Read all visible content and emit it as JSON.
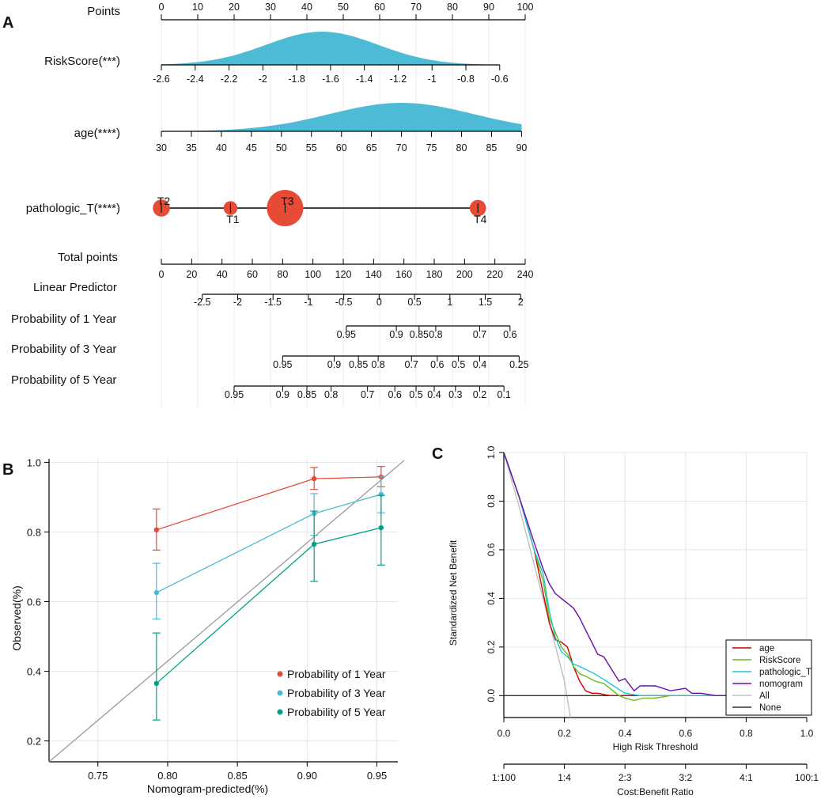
{
  "panels": {
    "a": "A",
    "b": "B",
    "c": "C"
  },
  "colors": {
    "density": "#4dbbd5",
    "bubble": "#e64b35",
    "red": "#e64b35",
    "cyan": "#4dbbd5",
    "teal": "#00a087",
    "diag": "#9a9a9a",
    "grid": "#e5e5e5"
  },
  "chart_data": [
    {
      "type": "nomogram",
      "panel": "A",
      "rows": [
        {
          "label": "Points",
          "scale": [
            0,
            100
          ],
          "ticks": [
            0,
            10,
            20,
            30,
            40,
            50,
            60,
            70,
            80,
            90,
            100
          ]
        },
        {
          "label": "RiskScore(***)",
          "variable_range": [
            -2.6,
            -0.6
          ],
          "points_range": [
            0,
            93
          ],
          "ticks": [
            "-2.6",
            "-2.4",
            "-2.2",
            "-2",
            "-1.8",
            "-1.6",
            "-1.4",
            "-1.2",
            "-1",
            "-0.8",
            "-0.6"
          ],
          "density_peak": -1.65,
          "density_sd": 0.33
        },
        {
          "label": "age(****)",
          "variable_range": [
            30,
            90
          ],
          "points_range": [
            0,
            99
          ],
          "ticks": [
            "30",
            "35",
            "40",
            "45",
            "50",
            "55",
            "60",
            "65",
            "70",
            "75",
            "80",
            "85",
            "90"
          ],
          "density_peak": 70,
          "density_sd": 12
        },
        {
          "label": "pathologic_T(****)",
          "levels": [
            {
              "name": "T2",
              "points": 0,
              "size": 0.47,
              "label_pos": "above"
            },
            {
              "name": "T1",
              "points": 19,
              "size": 0.38,
              "label_pos": "below"
            },
            {
              "name": "T3",
              "points": 34,
              "size": 1.0,
              "label_pos": "above"
            },
            {
              "name": "T4",
              "points": 87,
              "size": 0.45,
              "label_pos": "below"
            }
          ]
        },
        {
          "label": "Total points",
          "scale": [
            0,
            240
          ],
          "ticks": [
            "0",
            "20",
            "40",
            "60",
            "80",
            "100",
            "120",
            "140",
            "160",
            "180",
            "200",
            "220",
            "240"
          ]
        },
        {
          "label": "Linear Predictor",
          "range": [
            -2.5,
            2
          ],
          "ticks": [
            "-2.5",
            "-2",
            "-1.5",
            "-1",
            "-0.5",
            "0",
            "0.5",
            "1",
            "1.5",
            "2"
          ]
        },
        {
          "label": "Probability of 1 Year",
          "tick_values": [
            0.95,
            0.9,
            0.85,
            0.8,
            0.7,
            0.6
          ],
          "total_points_at_ticks": [
            122,
            155,
            170,
            181,
            210,
            230
          ],
          "ticks": [
            "0.95",
            "0.9",
            "0.85",
            "0.8",
            "0.7",
            "0.6"
          ]
        },
        {
          "label": "Probability of 3 Year",
          "tick_values": [
            0.95,
            0.9,
            0.85,
            0.8,
            0.7,
            0.6,
            0.5,
            0.4,
            0.25
          ],
          "total_points_at_ticks": [
            80,
            114,
            130,
            143,
            165,
            182,
            196,
            210,
            236
          ],
          "ticks": [
            "0.95",
            "0.9",
            "0.85",
            "0.8",
            "0.7",
            "0.6",
            "0.5",
            "0.4",
            "0.25"
          ]
        },
        {
          "label": "Probability of 5 Year",
          "tick_values": [
            0.95,
            0.9,
            0.85,
            0.8,
            0.7,
            0.6,
            0.5,
            0.4,
            0.3,
            0.2,
            0.1
          ],
          "total_points_at_ticks": [
            48,
            80,
            96,
            112,
            136,
            154,
            168,
            180,
            194,
            210,
            226
          ],
          "ticks": [
            "0.95",
            "0.9",
            "0.85",
            "0.8",
            "0.7",
            "0.6",
            "0.5",
            "0.4",
            "0.3",
            "0.2",
            "0.1"
          ]
        }
      ]
    },
    {
      "type": "line",
      "panel": "B",
      "xlabel": "Nomogram-predicted(%)",
      "ylabel": "Observed(%)",
      "xlim": [
        0.715,
        0.965
      ],
      "ylim": [
        0.14,
        1.01
      ],
      "xticks": [
        "0.75",
        "0.80",
        "0.85",
        "0.90",
        "0.95"
      ],
      "yticks": [
        "0.2",
        "0.4",
        "0.6",
        "0.8",
        "1.0"
      ],
      "reference_line": "y = x",
      "series": [
        {
          "name": "Probability of 1 Year",
          "color": "#e64b35",
          "x": [
            0.792,
            0.905,
            0.953
          ],
          "y": [
            0.806,
            0.953,
            0.958
          ],
          "err_low": [
            0.748,
            0.922,
            0.93
          ],
          "err_high": [
            0.866,
            0.985,
            0.988
          ]
        },
        {
          "name": "Probability of 3 Year",
          "color": "#4dbbd5",
          "x": [
            0.792,
            0.905,
            0.953
          ],
          "y": [
            0.626,
            0.853,
            0.908
          ],
          "err_low": [
            0.55,
            0.79,
            0.855
          ],
          "err_high": [
            0.71,
            0.91,
            0.96
          ]
        },
        {
          "name": "Probability of 5 Year",
          "color": "#00a087",
          "x": [
            0.792,
            0.905,
            0.953
          ],
          "y": [
            0.365,
            0.765,
            0.812
          ],
          "err_low": [
            0.26,
            0.658,
            0.705
          ],
          "err_high": [
            0.51,
            0.86,
            0.905
          ]
        }
      ],
      "legend": "bottom-right"
    },
    {
      "type": "line",
      "panel": "C",
      "xlabel": "High Risk Threshold",
      "ylabel": "Standardized Net Benefit",
      "x2label": "Cost:Benefit Ratio",
      "xlim": [
        0,
        1
      ],
      "ylim": [
        -0.09,
        1.0
      ],
      "xticks": [
        "0.0",
        "0.2",
        "0.4",
        "0.6",
        "0.8",
        "1.0"
      ],
      "yticks": [
        "0.0",
        "0.2",
        "0.4",
        "0.6",
        "0.8",
        "1.0"
      ],
      "x2ticks": [
        "1:100",
        "1:4",
        "2:3",
        "3:2",
        "4:1",
        "100:1"
      ],
      "legend": "bottom-right",
      "series": [
        {
          "name": "age",
          "color": "#cc0000",
          "x": [
            0,
            0.05,
            0.1,
            0.13,
            0.15,
            0.17,
            0.19,
            0.21,
            0.23,
            0.25,
            0.27,
            0.29,
            0.31,
            0.35,
            0.4,
            0.5,
            0.7,
            0.9
          ],
          "y": [
            1.0,
            0.82,
            0.6,
            0.42,
            0.3,
            0.23,
            0.22,
            0.2,
            0.12,
            0.06,
            0.02,
            0.01,
            0.01,
            0.0,
            0.0,
            0.0,
            0.0,
            0.0
          ]
        },
        {
          "name": "RiskScore",
          "color": "#66bb1f",
          "x": [
            0,
            0.05,
            0.1,
            0.13,
            0.15,
            0.17,
            0.19,
            0.21,
            0.23,
            0.25,
            0.27,
            0.3,
            0.33,
            0.36,
            0.38,
            0.4,
            0.43,
            0.46,
            0.5,
            0.55,
            0.6,
            0.7,
            0.9
          ],
          "y": [
            1.0,
            0.82,
            0.6,
            0.47,
            0.32,
            0.26,
            0.2,
            0.17,
            0.12,
            0.09,
            0.08,
            0.06,
            0.05,
            0.02,
            0.0,
            -0.01,
            -0.02,
            -0.01,
            -0.01,
            0.0,
            0.0,
            0.0,
            0.0
          ]
        },
        {
          "name": "pathologic_T",
          "color": "#22c4d4",
          "x": [
            0,
            0.05,
            0.1,
            0.13,
            0.15,
            0.17,
            0.19,
            0.21,
            0.23,
            0.25,
            0.3,
            0.35,
            0.4,
            0.45,
            0.5,
            0.6,
            0.7,
            0.9
          ],
          "y": [
            1.0,
            0.82,
            0.6,
            0.5,
            0.35,
            0.24,
            0.18,
            0.16,
            0.13,
            0.12,
            0.09,
            0.05,
            0.01,
            0.0,
            0.0,
            0.0,
            0.0,
            0.0
          ]
        },
        {
          "name": "nomogram",
          "color": "#6a0dad",
          "x": [
            0,
            0.05,
            0.1,
            0.13,
            0.15,
            0.17,
            0.19,
            0.21,
            0.23,
            0.25,
            0.27,
            0.29,
            0.31,
            0.33,
            0.35,
            0.37,
            0.38,
            0.4,
            0.43,
            0.45,
            0.47,
            0.5,
            0.55,
            0.6,
            0.62,
            0.65,
            0.7,
            0.75,
            0.8,
            0.85
          ],
          "y": [
            1.0,
            0.82,
            0.63,
            0.52,
            0.46,
            0.42,
            0.4,
            0.38,
            0.36,
            0.32,
            0.27,
            0.22,
            0.17,
            0.16,
            0.12,
            0.08,
            0.06,
            0.07,
            0.02,
            0.04,
            0.04,
            0.04,
            0.02,
            0.03,
            0.01,
            0.01,
            0.0,
            0.0,
            0.0,
            0.0
          ]
        },
        {
          "name": "All",
          "color": "#c0c0c0",
          "x": [
            0,
            0.05,
            0.1,
            0.15,
            0.2,
            0.22
          ],
          "y": [
            1.0,
            0.78,
            0.54,
            0.3,
            0.06,
            -0.09
          ]
        },
        {
          "name": "None",
          "color": "#333333",
          "x": [
            0,
            1
          ],
          "y": [
            0,
            0
          ]
        }
      ]
    }
  ]
}
